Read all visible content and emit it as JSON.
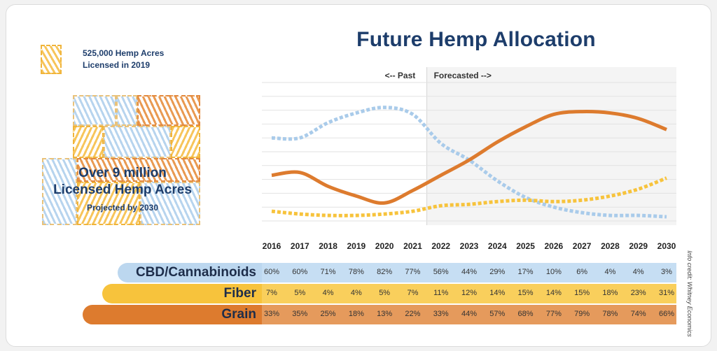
{
  "title": "Future Hemp Allocation",
  "legend": {
    "line1": "525,000 Hemp Acres",
    "line2": "Licensed in 2019"
  },
  "highlight": {
    "line1": "Over 9 million",
    "line2": "Licensed Hemp Acres",
    "line3": "Projected by 2030"
  },
  "credit": "Info credit: Whitney Economics",
  "colors": {
    "cbd": "#a9cbea",
    "fiber": "#f7c33c",
    "grain": "#dd7b2e",
    "title": "#1d3d6b"
  },
  "chart_data": {
    "type": "line",
    "title": "Future Hemp Allocation",
    "x": [
      "2016",
      "2017",
      "2018",
      "2019",
      "2020",
      "2021",
      "2022",
      "2023",
      "2024",
      "2025",
      "2026",
      "2027",
      "2028",
      "2029",
      "2030"
    ],
    "annotations": [
      "<-- Past",
      "Forecasted -->"
    ],
    "forecast_start": "2022",
    "ylim": [
      0,
      100
    ],
    "grid": true,
    "series": [
      {
        "name": "CBD/Cannabinoids",
        "values": [
          60,
          60,
          71,
          78,
          82,
          77,
          56,
          44,
          29,
          17,
          10,
          6,
          4,
          4,
          3
        ],
        "color": "#a9cbea",
        "style": "dashed"
      },
      {
        "name": "Fiber",
        "values": [
          7,
          5,
          4,
          4,
          5,
          7,
          11,
          12,
          14,
          15,
          14,
          15,
          18,
          23,
          31
        ],
        "color": "#f7c33c",
        "style": "dashed"
      },
      {
        "name": "Grain",
        "values": [
          33,
          35,
          25,
          18,
          13,
          22,
          33,
          44,
          57,
          68,
          77,
          79,
          78,
          74,
          66
        ],
        "color": "#dd7b2e",
        "style": "solid"
      }
    ],
    "table": {
      "rows": [
        {
          "name": "CBD/Cannabinoids",
          "cells": [
            "60%",
            "60%",
            "71%",
            "78%",
            "82%",
            "77%",
            "56%",
            "44%",
            "29%",
            "17%",
            "10%",
            "6%",
            "4%",
            "4%",
            "3%"
          ]
        },
        {
          "name": "Fiber",
          "cells": [
            "7%",
            "5%",
            "4%",
            "4%",
            "5%",
            "7%",
            "11%",
            "12%",
            "14%",
            "15%",
            "14%",
            "15%",
            "18%",
            "23%",
            "31%"
          ]
        },
        {
          "name": "Grain",
          "cells": [
            "33%",
            "35%",
            "25%",
            "18%",
            "13%",
            "22%",
            "33%",
            "44%",
            "57%",
            "68%",
            "77%",
            "79%",
            "78%",
            "74%",
            "66%"
          ]
        }
      ]
    }
  }
}
